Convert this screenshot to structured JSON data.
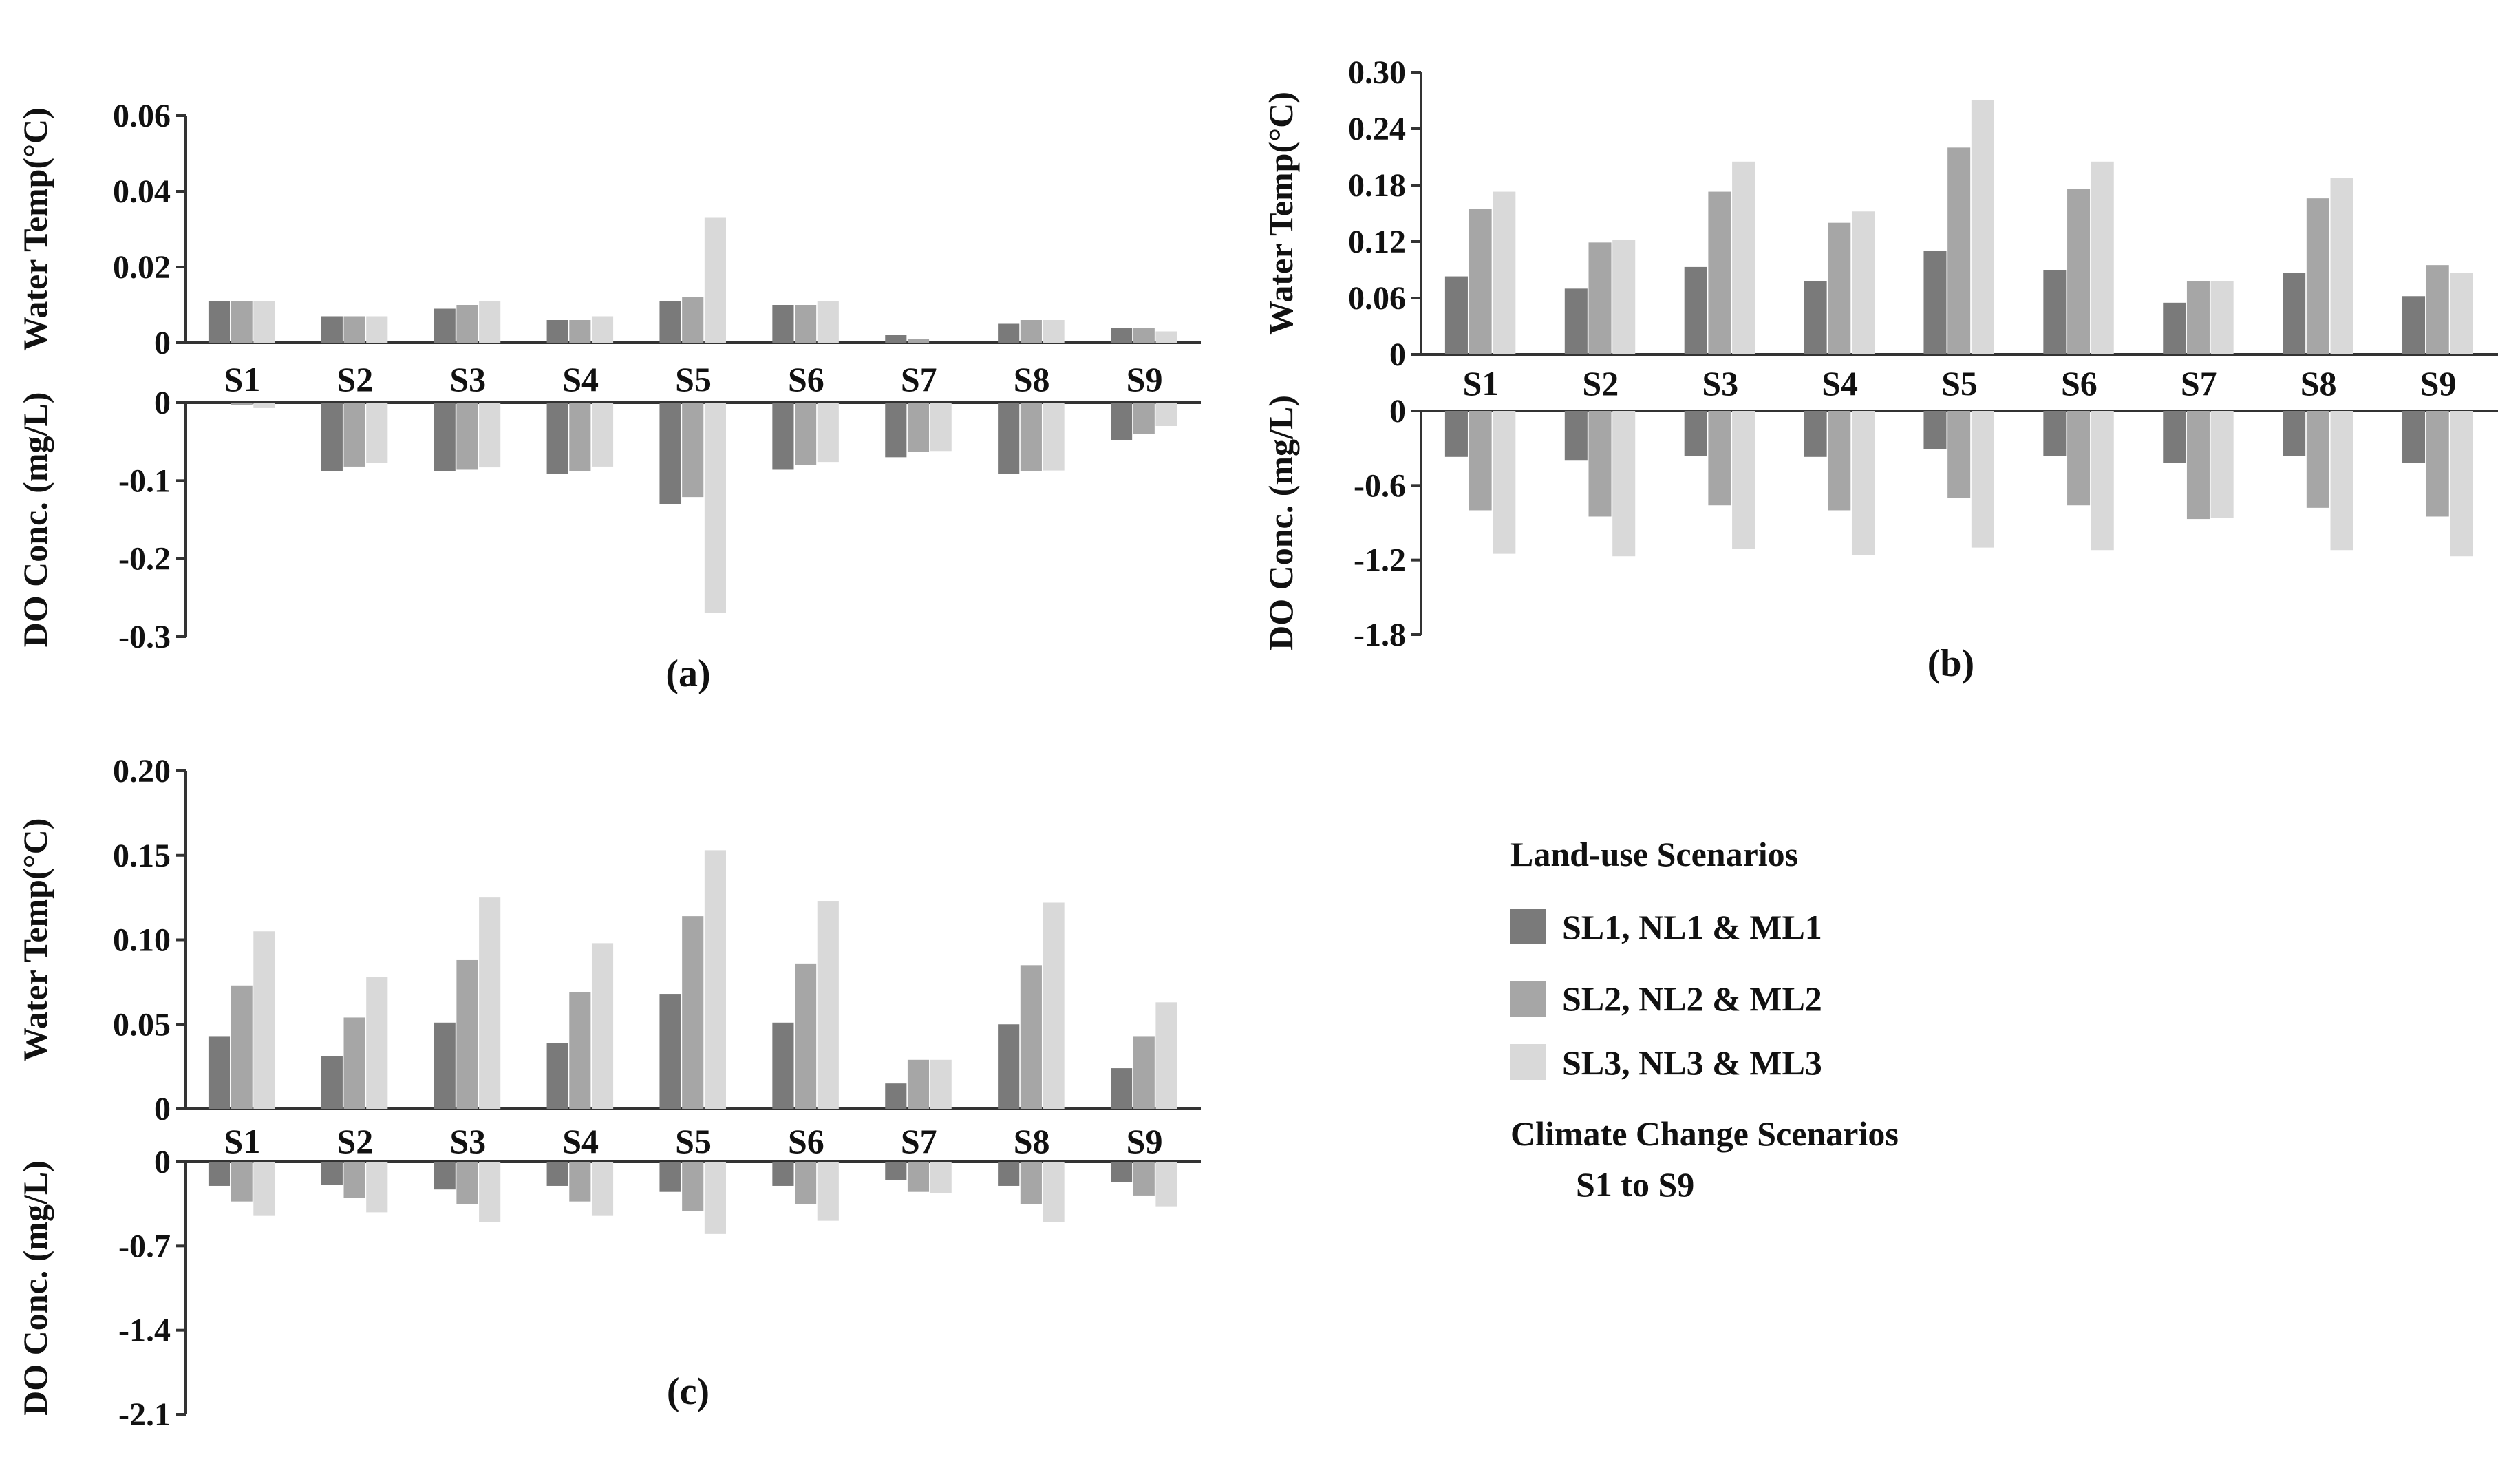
{
  "chart_data": [
    {
      "type": "bar",
      "panel_label": "(a)",
      "categories": [
        "S1",
        "S2",
        "S3",
        "S4",
        "S5",
        "S6",
        "S7",
        "S8",
        "S9"
      ],
      "top": {
        "ylabel": "Water Temp(°C)",
        "ylim": [
          0,
          0.06
        ],
        "ticks": [
          0,
          0.02,
          0.04,
          0.06
        ],
        "tick_labels": [
          "0",
          "0.02",
          "0.04",
          "0.06"
        ],
        "series": [
          {
            "name": "SL1, NL1 & ML1",
            "values": [
              0.011,
              0.007,
              0.009,
              0.006,
              0.011,
              0.01,
              0.002,
              0.005,
              0.004
            ]
          },
          {
            "name": "SL2, NL2 & ML2",
            "values": [
              0.011,
              0.007,
              0.01,
              0.006,
              0.012,
              0.01,
              0.001,
              0.006,
              0.004
            ]
          },
          {
            "name": "SL3, NL3 & ML3",
            "values": [
              0.011,
              0.007,
              0.011,
              0.007,
              0.033,
              0.011,
              0.0,
              0.006,
              0.003
            ]
          }
        ]
      },
      "bottom": {
        "ylabel": "DO Conc. (mg/L)",
        "ylim": [
          -0.3,
          0
        ],
        "ticks": [
          0,
          -0.1,
          -0.2,
          -0.3
        ],
        "tick_labels": [
          "0",
          "-0.1",
          "-0.2",
          "-0.3"
        ],
        "series": [
          {
            "name": "SL1, NL1 & ML1",
            "values": [
              0.0,
              -0.088,
              -0.088,
              -0.091,
              -0.13,
              -0.086,
              -0.07,
              -0.091,
              -0.048
            ]
          },
          {
            "name": "SL2, NL2 & ML2",
            "values": [
              -0.003,
              -0.082,
              -0.086,
              -0.088,
              -0.121,
              -0.08,
              -0.063,
              -0.088,
              -0.04
            ]
          },
          {
            "name": "SL3, NL3 & ML3",
            "values": [
              -0.007,
              -0.077,
              -0.083,
              -0.082,
              -0.27,
              -0.076,
              -0.062,
              -0.087,
              -0.03
            ]
          }
        ]
      }
    },
    {
      "type": "bar",
      "panel_label": "(b)",
      "categories": [
        "S1",
        "S2",
        "S3",
        "S4",
        "S5",
        "S6",
        "S7",
        "S8",
        "S9"
      ],
      "top": {
        "ylabel": "Water Temp(°C)",
        "ylim": [
          0,
          0.3
        ],
        "ticks": [
          0,
          0.06,
          0.12,
          0.18,
          0.24,
          0.3
        ],
        "tick_labels": [
          "0",
          "0.06",
          "0.12",
          "0.18",
          "0.24",
          "0.30"
        ],
        "series": [
          {
            "name": "SL1, NL1 & ML1",
            "values": [
              0.083,
              0.07,
              0.093,
              0.078,
              0.11,
              0.09,
              0.055,
              0.087,
              0.062
            ]
          },
          {
            "name": "SL2, NL2 & ML2",
            "values": [
              0.155,
              0.119,
              0.173,
              0.14,
              0.22,
              0.176,
              0.078,
              0.166,
              0.095
            ]
          },
          {
            "name": "SL3, NL3 & ML3",
            "values": [
              0.173,
              0.122,
              0.205,
              0.152,
              0.27,
              0.205,
              0.078,
              0.188,
              0.087
            ]
          }
        ]
      },
      "bottom": {
        "ylabel": "DO Conc. (mg/L)",
        "ylim": [
          -1.8,
          0
        ],
        "ticks": [
          0,
          -0.6,
          -1.2,
          -1.8
        ],
        "tick_labels": [
          "0",
          "-0.6",
          "-1.2",
          "-1.8"
        ],
        "series": [
          {
            "name": "SL1, NL1 & ML1",
            "values": [
              -0.37,
              -0.4,
              -0.36,
              -0.37,
              -0.31,
              -0.36,
              -0.42,
              -0.36,
              -0.42
            ]
          },
          {
            "name": "SL2, NL2 & ML2",
            "values": [
              -0.8,
              -0.85,
              -0.76,
              -0.8,
              -0.7,
              -0.76,
              -0.87,
              -0.78,
              -0.85
            ]
          },
          {
            "name": "SL3, NL3 & ML3",
            "values": [
              -1.15,
              -1.17,
              -1.11,
              -1.16,
              -1.1,
              -1.12,
              -0.86,
              -1.12,
              -1.17
            ]
          }
        ]
      }
    },
    {
      "type": "bar",
      "panel_label": "(c)",
      "categories": [
        "S1",
        "S2",
        "S3",
        "S4",
        "S5",
        "S6",
        "S7",
        "S8",
        "S9"
      ],
      "top": {
        "ylabel": "Water Temp(°C)",
        "ylim": [
          0,
          0.2
        ],
        "ticks": [
          0,
          0.05,
          0.1,
          0.15,
          0.2
        ],
        "tick_labels": [
          "0",
          "0.05",
          "0.10",
          "0.15",
          "0.20"
        ],
        "series": [
          {
            "name": "SL1, NL1 & ML1",
            "values": [
              0.043,
              0.031,
              0.051,
              0.039,
              0.068,
              0.051,
              0.015,
              0.05,
              0.024
            ]
          },
          {
            "name": "SL2, NL2 & ML2",
            "values": [
              0.073,
              0.054,
              0.088,
              0.069,
              0.114,
              0.086,
              0.029,
              0.085,
              0.043
            ]
          },
          {
            "name": "SL3, NL3 & ML3",
            "values": [
              0.105,
              0.078,
              0.125,
              0.098,
              0.153,
              0.123,
              0.029,
              0.122,
              0.063
            ]
          }
        ]
      },
      "bottom": {
        "ylabel": "DO Conc. (mg/L)",
        "ylim": [
          -2.1,
          0
        ],
        "ticks": [
          0,
          -0.7,
          -1.4,
          -2.1
        ],
        "tick_labels": [
          "0",
          "-0.7",
          "-1.4",
          "-2.1"
        ],
        "series": [
          {
            "name": "SL1, NL1 & ML1",
            "values": [
              -0.2,
              -0.19,
              -0.23,
              -0.2,
              -0.25,
              -0.2,
              -0.15,
              -0.2,
              -0.17
            ]
          },
          {
            "name": "SL2, NL2 & ML2",
            "values": [
              -0.33,
              -0.3,
              -0.35,
              -0.33,
              -0.41,
              -0.35,
              -0.25,
              -0.35,
              -0.28
            ]
          },
          {
            "name": "SL3, NL3 & ML3",
            "values": [
              -0.45,
              -0.42,
              -0.5,
              -0.45,
              -0.6,
              -0.49,
              -0.26,
              -0.5,
              -0.37
            ]
          }
        ]
      }
    }
  ],
  "legend": {
    "landuse_title": "Land-use Scenarios",
    "items": [
      {
        "label": "SL1, NL1 & ML1",
        "color": "#7a7a7a"
      },
      {
        "label": "SL2, NL2 & ML2",
        "color": "#a6a6a6"
      },
      {
        "label": "SL3, NL3 & ML3",
        "color": "#d9d9d9"
      }
    ],
    "climate_title": "Climate Change Scenarios",
    "climate_range": "S1 to S9"
  },
  "colors": [
    "#7a7a7a",
    "#a6a6a6",
    "#d9d9d9"
  ]
}
